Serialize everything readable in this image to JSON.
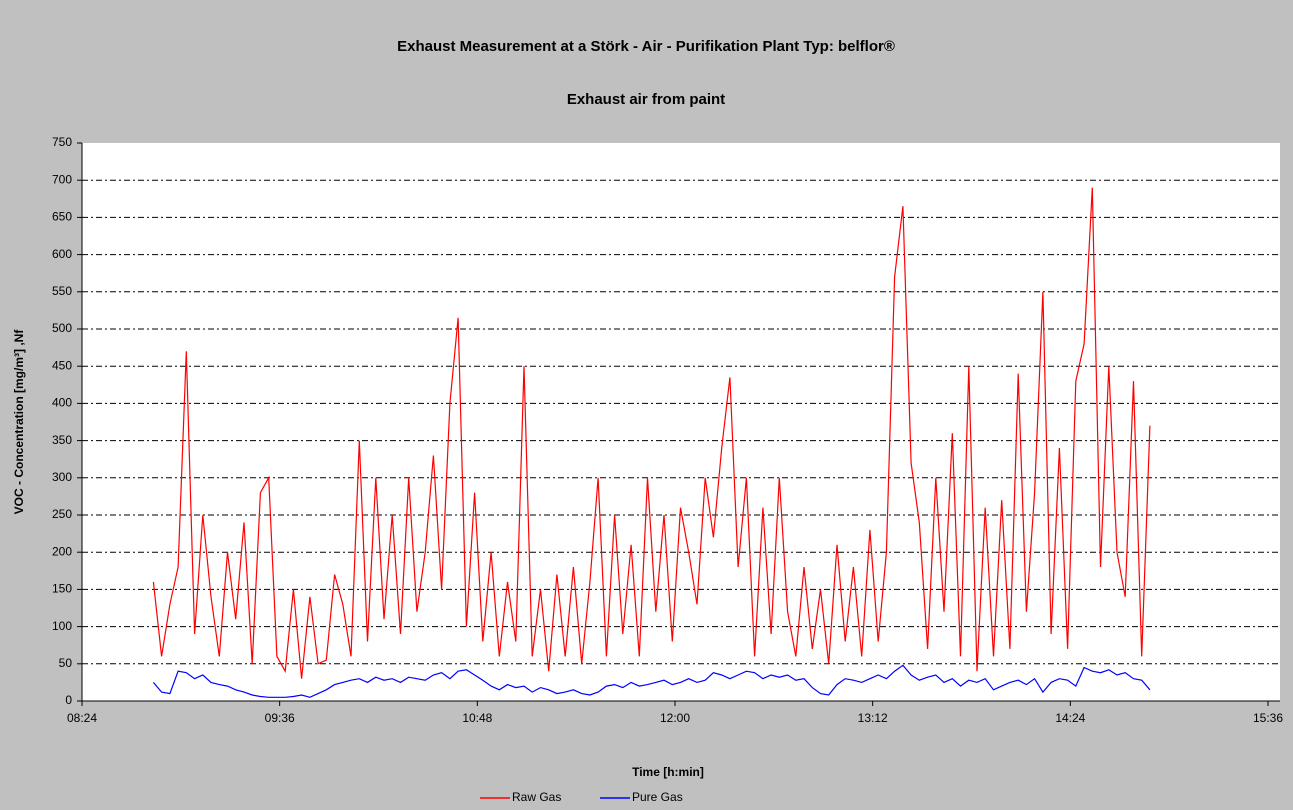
{
  "chart_data": {
    "type": "line",
    "title": "Exhaust Measurement at a Störk - Air - Purifikation Plant Typ: belflor®",
    "subtitle": "Exhaust air from paint",
    "x_label": "Time [h:min]",
    "y_label": "VOC - Concentration [mg/m³] ,Nf",
    "x": [
      530,
      533,
      536,
      539,
      542,
      545,
      548,
      551,
      554,
      557,
      560,
      563,
      566,
      569,
      572,
      575,
      578,
      581,
      584,
      587,
      590,
      593,
      596,
      599,
      602,
      605,
      608,
      611,
      614,
      617,
      620,
      623,
      626,
      629,
      632,
      635,
      638,
      641,
      644,
      647,
      650,
      653,
      656,
      659,
      662,
      665,
      668,
      671,
      674,
      677,
      680,
      683,
      686,
      689,
      692,
      695,
      698,
      701,
      704,
      707,
      710,
      713,
      716,
      719,
      722,
      725,
      728,
      731,
      734,
      737,
      740,
      743,
      746,
      749,
      752,
      755,
      758,
      761,
      764,
      767,
      770,
      773,
      776,
      779,
      782,
      785,
      788,
      791,
      794,
      797,
      800,
      803,
      806,
      809,
      812,
      815,
      818,
      821,
      824,
      827,
      830,
      833,
      836,
      839,
      842,
      845,
      848,
      851,
      854,
      857,
      860,
      863,
      866,
      869,
      872,
      875,
      878,
      881,
      884,
      887,
      890,
      893
    ],
    "series": [
      {
        "name": "Raw Gas",
        "color": "#ff0000",
        "values": [
          160,
          60,
          130,
          180,
          470,
          90,
          250,
          140,
          60,
          200,
          110,
          240,
          50,
          280,
          300,
          60,
          40,
          150,
          30,
          140,
          50,
          55,
          170,
          130,
          60,
          350,
          80,
          300,
          110,
          250,
          90,
          300,
          120,
          200,
          330,
          150,
          400,
          515,
          100,
          280,
          80,
          200,
          60,
          160,
          80,
          450,
          60,
          150,
          40,
          170,
          60,
          180,
          50,
          160,
          300,
          60,
          250,
          90,
          210,
          60,
          300,
          120,
          250,
          80,
          260,
          200,
          130,
          300,
          220,
          340,
          435,
          180,
          300,
          60,
          260,
          90,
          300,
          120,
          60,
          180,
          70,
          150,
          50,
          210,
          80,
          180,
          60,
          230,
          80,
          200,
          570,
          665,
          320,
          240,
          70,
          300,
          120,
          360,
          60,
          450,
          40,
          260,
          60,
          270,
          70,
          440,
          120,
          280,
          550,
          90,
          340,
          70,
          430,
          480,
          690,
          180,
          450,
          200,
          140,
          430,
          60,
          370
        ]
      },
      {
        "name": "Pure Gas",
        "color": "#0000ff",
        "values": [
          25,
          12,
          10,
          40,
          38,
          30,
          35,
          25,
          22,
          20,
          15,
          12,
          8,
          6,
          5,
          5,
          5,
          6,
          8,
          5,
          10,
          15,
          22,
          25,
          28,
          30,
          25,
          32,
          28,
          30,
          25,
          32,
          30,
          28,
          35,
          38,
          30,
          40,
          42,
          35,
          28,
          20,
          15,
          22,
          18,
          20,
          12,
          18,
          15,
          10,
          12,
          15,
          10,
          8,
          12,
          20,
          22,
          18,
          25,
          20,
          22,
          25,
          28,
          22,
          25,
          30,
          25,
          28,
          38,
          35,
          30,
          35,
          40,
          38,
          30,
          35,
          32,
          35,
          28,
          30,
          18,
          10,
          8,
          22,
          30,
          28,
          25,
          30,
          35,
          30,
          40,
          48,
          35,
          28,
          32,
          35,
          25,
          30,
          20,
          28,
          25,
          30,
          15,
          20,
          25,
          28,
          22,
          30,
          12,
          25,
          30,
          28,
          20,
          45,
          40,
          38,
          42,
          35,
          38,
          30,
          28,
          15
        ]
      }
    ],
    "xlim": [
      504,
      936
    ],
    "xticks": [
      {
        "value": 504,
        "label": "08:24"
      },
      {
        "value": 576,
        "label": "09:36"
      },
      {
        "value": 648,
        "label": "10:48"
      },
      {
        "value": 720,
        "label": "12:00"
      },
      {
        "value": 792,
        "label": "13:12"
      },
      {
        "value": 864,
        "label": "14:24"
      },
      {
        "value": 936,
        "label": "15:36"
      }
    ],
    "ylim": [
      0,
      750
    ],
    "yticks": [
      0,
      50,
      100,
      150,
      200,
      250,
      300,
      350,
      400,
      450,
      500,
      550,
      600,
      650,
      700,
      750
    ],
    "grid": true,
    "legend": "bottom"
  }
}
